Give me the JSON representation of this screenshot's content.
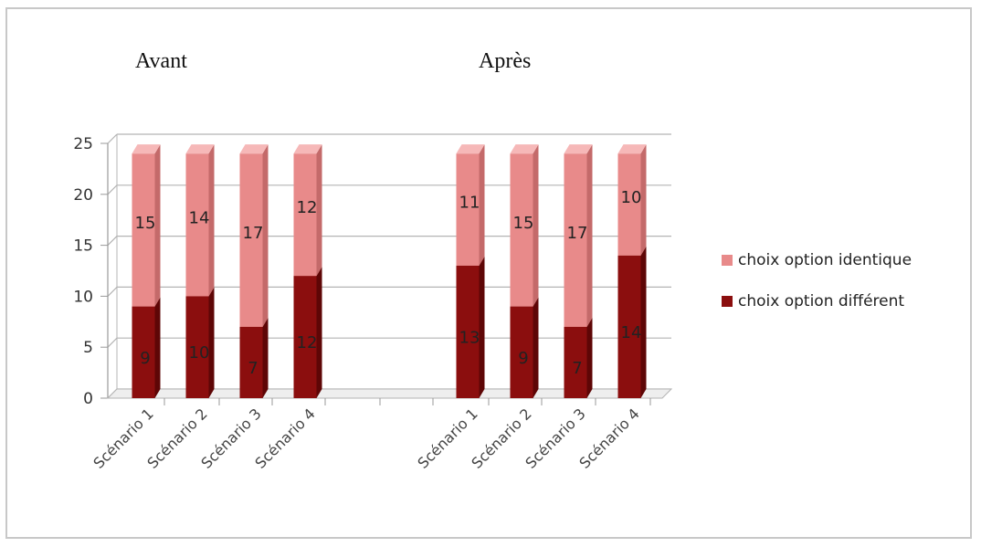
{
  "chart_data": {
    "type": "bar",
    "stacked": true,
    "three_d": true,
    "groups": [
      {
        "title": "Avant",
        "categories": [
          "Scénario 1",
          "Scénario 2",
          "Scénario 3",
          "Scénario 4"
        ],
        "series": [
          {
            "name": "choix option différent",
            "values": [
              9,
              10,
              7,
              12
            ]
          },
          {
            "name": "choix option identique",
            "values": [
              15,
              14,
              17,
              12
            ]
          }
        ]
      },
      {
        "title": "Après",
        "categories": [
          "Scénario 1",
          "Scénario 2",
          "Scénario 3",
          "Scénario 4"
        ],
        "series": [
          {
            "name": "choix option différent",
            "values": [
              13,
              9,
              7,
              14
            ]
          },
          {
            "name": "choix option identique",
            "values": [
              11,
              15,
              17,
              10
            ]
          }
        ]
      }
    ],
    "ylim": [
      0,
      25
    ],
    "yticks": [
      0,
      5,
      10,
      15,
      20,
      25
    ],
    "grid": true,
    "legend": {
      "position": "right",
      "entries": [
        {
          "name": "choix option identique",
          "color": "#e88a8a"
        },
        {
          "name": "choix option différent",
          "color": "#8b0e0e"
        }
      ]
    },
    "colors": {
      "identique": "#e88a8a",
      "identique_light": "#f6b8b8",
      "different": "#8b0e0e",
      "different_light": "#b02a20"
    }
  }
}
